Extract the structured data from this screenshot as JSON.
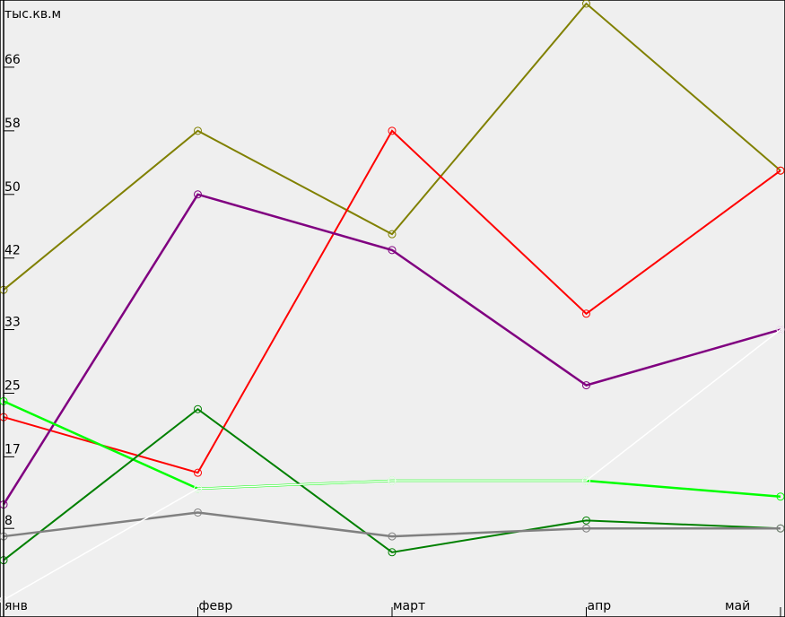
{
  "chart_data": {
    "type": "line",
    "title": "",
    "xlabel": "",
    "ylabel": "тыс.кв.м",
    "categories": [
      "янв",
      "февр",
      "март",
      "апр",
      "май"
    ],
    "y_ticks": [
      "8",
      "17",
      "25",
      "33",
      "42",
      "50",
      "58",
      "66"
    ],
    "ylim": [
      -1,
      74
    ],
    "grid": false,
    "background": "#efefef",
    "series": [
      {
        "color": "#808000",
        "values": [
          38,
          58,
          45,
          74,
          53
        ],
        "width": 2
      },
      {
        "color": "#ff0000",
        "values": [
          22,
          15,
          58,
          35,
          53
        ],
        "width": 2
      },
      {
        "color": "#800080",
        "values": [
          11,
          50,
          43,
          26,
          33
        ],
        "width": 2.5
      },
      {
        "color": "#00ff00",
        "values": [
          24,
          13,
          14,
          14,
          12
        ],
        "width": 2.5
      },
      {
        "color": "#008000",
        "values": [
          4,
          23,
          5,
          9,
          8
        ],
        "width": 2
      },
      {
        "color": "#808080",
        "values": [
          7,
          10,
          7,
          8,
          8
        ],
        "width": 2.5
      },
      {
        "color": "#ffffff",
        "values": [
          -1,
          13,
          14,
          14,
          33
        ],
        "width": 1.5
      }
    ]
  }
}
